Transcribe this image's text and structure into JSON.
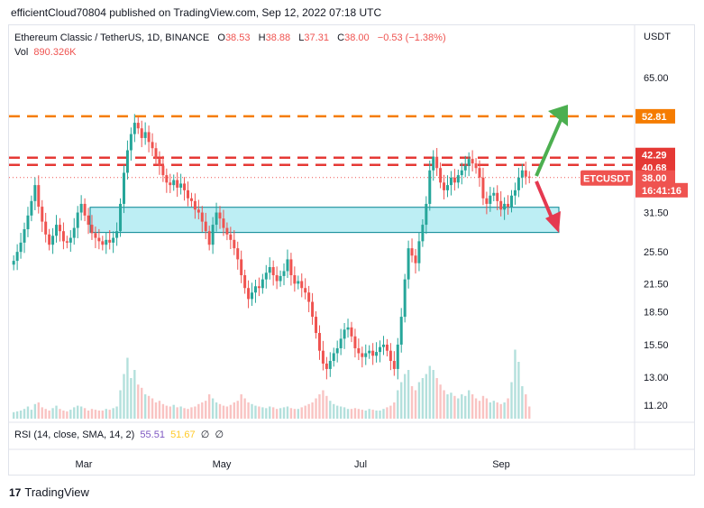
{
  "header": {
    "publisher_text": "efficientCloud70804 published on TradingView.com, Sep 12, 2022 07:18 UTC"
  },
  "legend": {
    "symbol": "Ethereum Classic / TetherUS, 1D, BINANCE",
    "o_label": "O",
    "o_value": "38.53",
    "h_label": "H",
    "h_value": "38.88",
    "l_label": "L",
    "l_value": "37.31",
    "c_label": "C",
    "c_value": "38.00",
    "change": "−0.53 (−1.38%)",
    "vol_label": "Vol",
    "vol_value": "890.326K"
  },
  "rsi_legend": {
    "label": "RSI (14, close, SMA, 14, 2)",
    "value1": "55.51",
    "value2": "51.67",
    "ind1": "∅",
    "ind2": "∅"
  },
  "footer": {
    "brand": "TradingView",
    "logo": "17"
  },
  "chart_data": {
    "type": "candlestick",
    "currency_label": "USDT",
    "y_scale": "log",
    "y_ticks": [
      11.2,
      13.0,
      15.5,
      18.5,
      21.5,
      25.5,
      31.5,
      65.0
    ],
    "y_tick_labels": [
      "11.20",
      "13.00",
      "15.50",
      "18.50",
      "21.50",
      "25.50",
      "31.50",
      "65.00"
    ],
    "x_ticks": [
      "Mar",
      "May",
      "Jul",
      "Sep"
    ],
    "price_flags": [
      {
        "label": "52.81",
        "value": 52.81,
        "color": "#f57c00"
      },
      {
        "label": "42.29",
        "value": 42.29,
        "color": "#e53935"
      },
      {
        "label": "40.68",
        "value": 40.68,
        "color": "#e53935"
      },
      {
        "label": "38.00",
        "value": 38.0,
        "color": "#ef5350"
      },
      {
        "label": "16:41:16",
        "value": 35.8,
        "color": "#ef5350"
      }
    ],
    "symbol_tag": "ETCUSDT",
    "horizontal_levels": [
      {
        "value": 52.81,
        "color": "#f57c00",
        "style": "dashed"
      },
      {
        "value": 42.29,
        "color": "#e53935",
        "style": "dashed"
      },
      {
        "value": 40.68,
        "color": "#e53935",
        "style": "dashed"
      }
    ],
    "zone": {
      "low": 28.3,
      "high": 32.4,
      "color": "#b2ebf2"
    },
    "close_path": [
      24.3,
      25.5,
      26.8,
      28.8,
      31.0,
      33.5,
      36.5,
      32.5,
      30.0,
      28.0,
      26.5,
      27.8,
      29.5,
      28.5,
      27.0,
      26.8,
      27.5,
      29.0,
      31.5,
      33.0,
      31.0,
      29.5,
      28.2,
      27.5,
      27.0,
      26.5,
      27.2,
      26.8,
      27.5,
      28.5,
      33.0,
      39.0,
      44.0,
      48.0,
      51.0,
      49.5,
      47.0,
      48.5,
      46.0,
      44.5,
      42.0,
      40.5,
      38.5,
      37.0,
      36.5,
      37.5,
      36.0,
      36.8,
      35.5,
      34.0,
      33.5,
      32.0,
      31.5,
      30.0,
      28.5,
      26.5,
      29.5,
      31.5,
      30.5,
      29.0,
      28.0,
      27.2,
      26.0,
      24.5,
      22.5,
      21.0,
      19.8,
      20.5,
      21.2,
      21.0,
      22.0,
      22.8,
      23.5,
      22.5,
      21.8,
      22.4,
      23.0,
      24.5,
      22.5,
      21.5,
      21.8,
      21.0,
      20.5,
      19.5,
      18.0,
      16.5,
      15.0,
      14.0,
      13.6,
      14.2,
      14.8,
      15.2,
      16.0,
      16.8,
      17.0,
      16.2,
      15.2,
      14.8,
      14.5,
      14.8,
      15.0,
      14.6,
      14.9,
      15.3,
      15.5,
      15.0,
      14.2,
      13.6,
      15.5,
      18.0,
      22.0,
      26.0,
      25.0,
      24.0,
      27.0,
      29.5,
      33.0,
      39.5,
      42.5,
      40.0,
      37.0,
      35.5,
      36.5,
      38.0,
      37.0,
      38.5,
      39.5,
      40.5,
      42.0,
      41.0,
      40.0,
      38.0,
      34.0,
      33.0,
      34.5,
      35.0,
      33.5,
      32.0,
      33.0,
      32.5,
      34.5,
      35.5,
      38.0,
      39.5,
      38.2,
      38.0
    ],
    "volume_path": [
      0.08,
      0.09,
      0.1,
      0.12,
      0.15,
      0.11,
      0.18,
      0.2,
      0.14,
      0.12,
      0.1,
      0.13,
      0.16,
      0.12,
      0.1,
      0.09,
      0.11,
      0.14,
      0.16,
      0.15,
      0.13,
      0.1,
      0.12,
      0.11,
      0.1,
      0.1,
      0.12,
      0.11,
      0.13,
      0.15,
      0.35,
      0.55,
      0.75,
      0.5,
      0.6,
      0.42,
      0.38,
      0.3,
      0.28,
      0.25,
      0.2,
      0.22,
      0.18,
      0.16,
      0.15,
      0.17,
      0.14,
      0.15,
      0.13,
      0.12,
      0.14,
      0.15,
      0.18,
      0.2,
      0.22,
      0.3,
      0.25,
      0.2,
      0.18,
      0.16,
      0.15,
      0.17,
      0.2,
      0.22,
      0.3,
      0.25,
      0.2,
      0.18,
      0.16,
      0.15,
      0.14,
      0.13,
      0.15,
      0.14,
      0.12,
      0.13,
      0.14,
      0.15,
      0.13,
      0.12,
      0.12,
      0.14,
      0.16,
      0.18,
      0.2,
      0.25,
      0.3,
      0.35,
      0.28,
      0.22,
      0.18,
      0.16,
      0.15,
      0.14,
      0.12,
      0.12,
      0.13,
      0.12,
      0.11,
      0.1,
      0.12,
      0.11,
      0.1,
      0.1,
      0.12,
      0.14,
      0.16,
      0.2,
      0.35,
      0.45,
      0.55,
      0.6,
      0.4,
      0.35,
      0.45,
      0.5,
      0.55,
      0.65,
      0.6,
      0.5,
      0.42,
      0.35,
      0.3,
      0.32,
      0.28,
      0.25,
      0.3,
      0.28,
      0.35,
      0.3,
      0.25,
      0.22,
      0.28,
      0.25,
      0.2,
      0.22,
      0.2,
      0.18,
      0.2,
      0.25,
      0.45,
      0.85,
      0.7,
      0.4,
      0.3,
      0.15
    ]
  }
}
